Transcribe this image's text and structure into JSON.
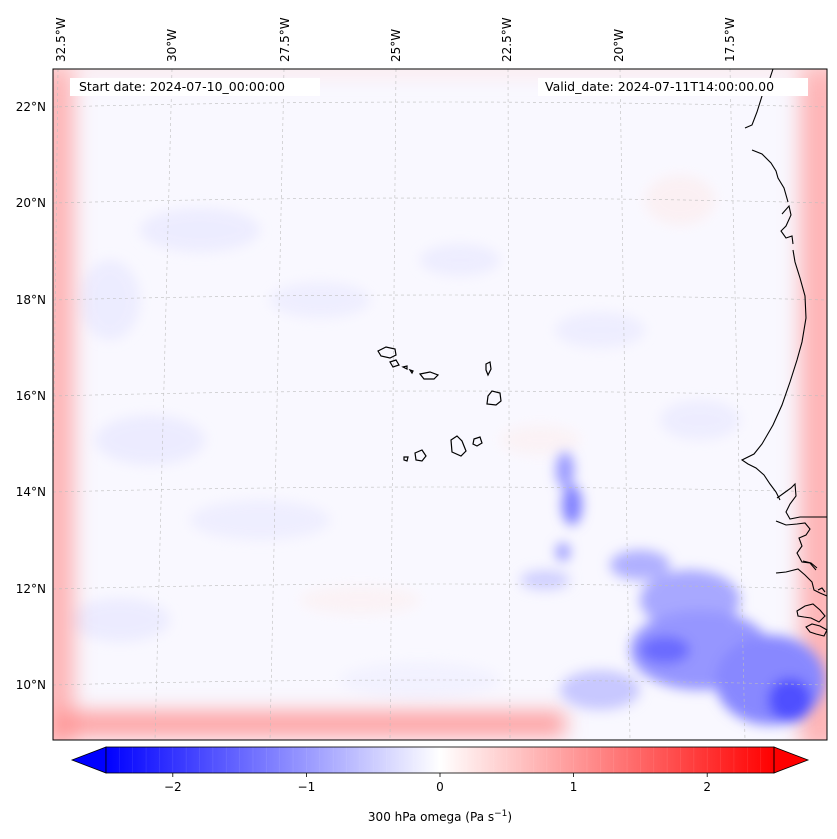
{
  "map": {
    "start_date": "Start date: 2024-07-10_00:00:00",
    "valid_date": "Valid_date: 2024-07-11T14:00:00.00",
    "lon_labels": [
      "32.5°W",
      "30°W",
      "27.5°W",
      "25°W",
      "22.5°W",
      "20°W",
      "17.5°W"
    ],
    "lat_labels": [
      "22°N",
      "20°N",
      "18°N",
      "16°N",
      "14°N",
      "12°N",
      "10°N"
    ],
    "features": [
      "cape-verde-islands",
      "west-africa-coastline",
      "omega-field"
    ]
  },
  "colorbar": {
    "label": "300 hPa omega (Pa s",
    "label_sup": "−1",
    "label_close": ")",
    "ticks": [
      "−2",
      "−1",
      "0",
      "1",
      "2"
    ],
    "tick_values": [
      -2,
      -1,
      0,
      1,
      2
    ],
    "vmin": -2.5,
    "vmax": 2.5,
    "colormap": "bwr",
    "low_color": "#0000ff",
    "mid_color": "#ffffff",
    "high_color": "#ff0000",
    "extend": "both"
  }
}
